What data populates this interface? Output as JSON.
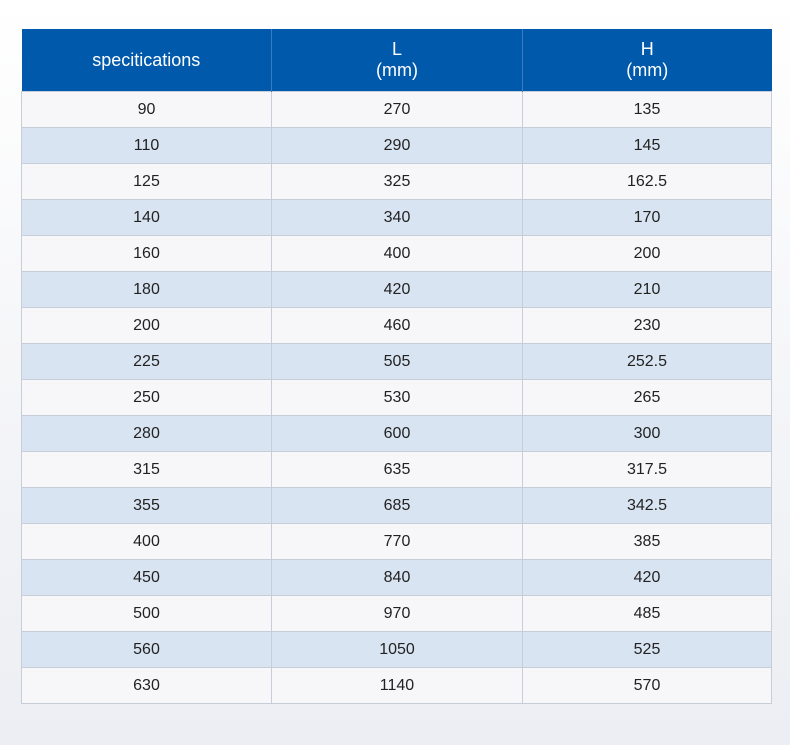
{
  "table": {
    "headers": [
      {
        "line1": "specitications",
        "line2": ""
      },
      {
        "line1": "L",
        "line2": "(mm)"
      },
      {
        "line1": "H",
        "line2": "(mm)"
      }
    ],
    "rows": [
      [
        "90",
        "270",
        "135"
      ],
      [
        "110",
        "290",
        "145"
      ],
      [
        "125",
        "325",
        "162.5"
      ],
      [
        "140",
        "340",
        "170"
      ],
      [
        "160",
        "400",
        "200"
      ],
      [
        "180",
        "420",
        "210"
      ],
      [
        "200",
        "460",
        "230"
      ],
      [
        "225",
        "505",
        "252.5"
      ],
      [
        "250",
        "530",
        "265"
      ],
      [
        "280",
        "600",
        "300"
      ],
      [
        "315",
        "635",
        "317.5"
      ],
      [
        "355",
        "685",
        "342.5"
      ],
      [
        "400",
        "770",
        "385"
      ],
      [
        "450",
        "840",
        "420"
      ],
      [
        "500",
        "970",
        "485"
      ],
      [
        "560",
        "1050",
        "525"
      ],
      [
        "630",
        "1140",
        "570"
      ]
    ]
  },
  "colors": {
    "header_bg": "#0059ab",
    "header_text": "#ffffff",
    "row_light": "#f7f7fa",
    "row_blue": "#d9e4f2"
  }
}
